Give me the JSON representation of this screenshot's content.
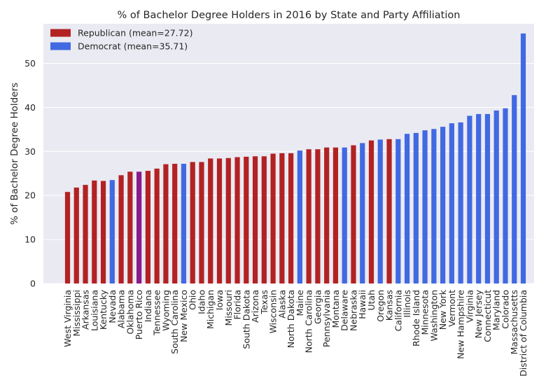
{
  "chart_data": {
    "type": "bar",
    "title": "% of Bachelor Degree Holders in 2016 by State and Party Affiliation",
    "xlabel": "",
    "ylabel": "% of Bachelor Degree Holders",
    "ylim": [
      0,
      59
    ],
    "yticks": [
      0,
      10,
      20,
      30,
      40,
      50
    ],
    "grid": true,
    "legend_position": "top-left",
    "colors": {
      "Republican": "#b22222",
      "Democrat": "#4169e1",
      "Other": "#8b1a8b",
      "background": "#eaeaf2"
    },
    "legend": [
      {
        "label": "Republican (mean=27.72)",
        "party": "Republican"
      },
      {
        "label": "Democrat (mean=35.71)",
        "party": "Democrat"
      }
    ],
    "categories": [
      "West Virginia",
      "Mississippi",
      "Arkansas",
      "Louisiana",
      "Kentucky",
      "Nevada",
      "Alabama",
      "Oklahoma",
      "Puerto Rico",
      "Indiana",
      "Tennessee",
      "Wyoming",
      "South Carolina",
      "New Mexico",
      "Ohio",
      "Idaho",
      "Michigan",
      "Iowa",
      "Missouri",
      "Florida",
      "South Dakota",
      "Arizona",
      "Texas",
      "Wisconsin",
      "Alaska",
      "North Dakota",
      "Maine",
      "North Carolina",
      "Georgia",
      "Pennsylvania",
      "Montana",
      "Delaware",
      "Nebraska",
      "Hawaii",
      "Utah",
      "Oregon",
      "Kansas",
      "California",
      "Illinois",
      "Rhode Island",
      "Minnesota",
      "Washington",
      "New York",
      "Vermont",
      "New Hampshire",
      "Virginia",
      "New Jersey",
      "Connecticut",
      "Maryland",
      "Colorado",
      "Massachusetts",
      "District of Columbia"
    ],
    "values": [
      20.8,
      21.8,
      22.4,
      23.4,
      23.3,
      23.5,
      24.6,
      25.4,
      25.4,
      25.6,
      26.1,
      27.1,
      27.2,
      27.2,
      27.6,
      27.6,
      28.4,
      28.4,
      28.5,
      28.7,
      28.8,
      28.9,
      28.9,
      29.5,
      29.6,
      29.6,
      30.2,
      30.5,
      30.5,
      30.9,
      30.9,
      30.9,
      31.4,
      31.9,
      32.5,
      32.7,
      32.8,
      32.8,
      34.0,
      34.2,
      34.8,
      35.1,
      35.6,
      36.4,
      36.6,
      38.1,
      38.5,
      38.5,
      39.3,
      39.8,
      42.8,
      56.8
    ],
    "parties": [
      "Republican",
      "Republican",
      "Republican",
      "Republican",
      "Republican",
      "Democrat",
      "Republican",
      "Republican",
      "Other",
      "Republican",
      "Republican",
      "Republican",
      "Republican",
      "Democrat",
      "Republican",
      "Republican",
      "Republican",
      "Republican",
      "Republican",
      "Republican",
      "Republican",
      "Republican",
      "Republican",
      "Republican",
      "Republican",
      "Republican",
      "Democrat",
      "Republican",
      "Republican",
      "Republican",
      "Republican",
      "Democrat",
      "Republican",
      "Democrat",
      "Republican",
      "Democrat",
      "Republican",
      "Democrat",
      "Democrat",
      "Democrat",
      "Democrat",
      "Democrat",
      "Democrat",
      "Democrat",
      "Democrat",
      "Democrat",
      "Democrat",
      "Democrat",
      "Democrat",
      "Democrat",
      "Democrat",
      "Democrat"
    ]
  }
}
